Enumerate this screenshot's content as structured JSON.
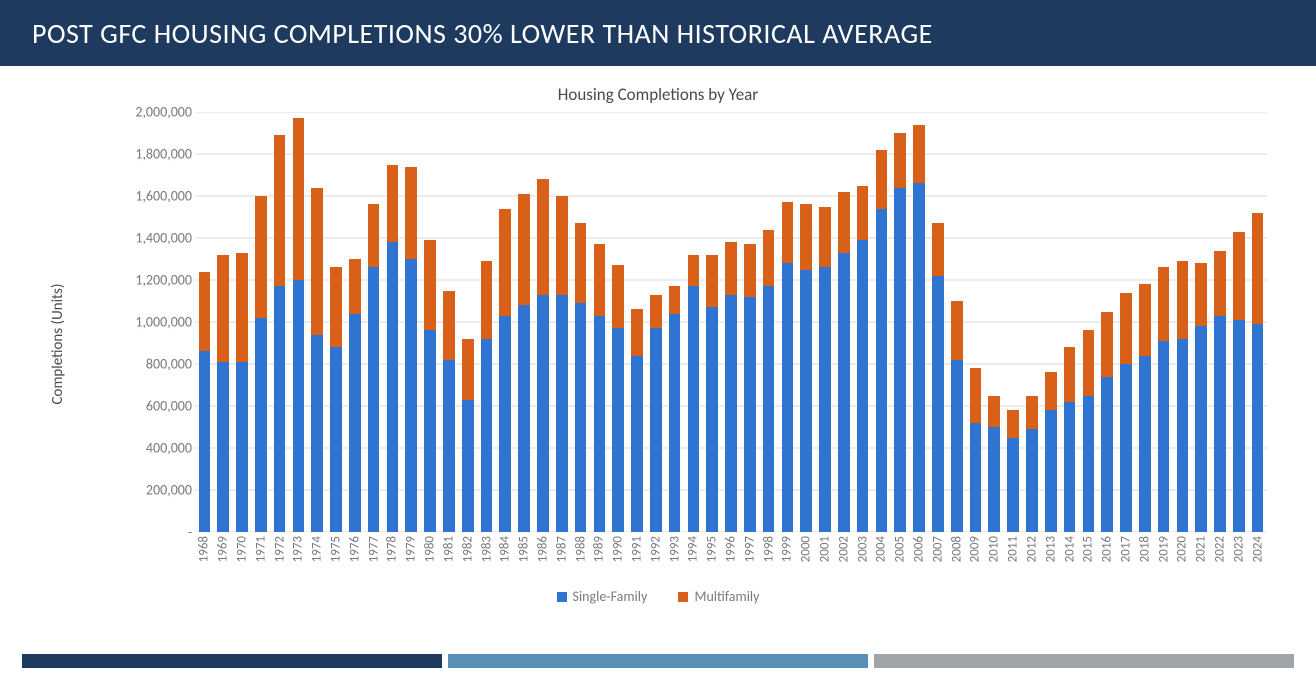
{
  "title": {
    "text": "POST GFC HOUSING COMPLETIONS 30% LOWER THAN HISTORICAL AVERAGE",
    "bg_color": "#1f3a5f",
    "text_color": "#ffffff",
    "fontsize_pt": 28
  },
  "chart": {
    "type": "stacked-bar",
    "subtitle": "Housing Completions by Year",
    "subtitle_fontsize_pt": 17,
    "subtitle_color": "#7a7a7a",
    "y_axis_label": "Completions (Units)",
    "y_axis_label_fontsize_pt": 15,
    "y_axis_label_color": "#7a7a7a",
    "background_color": "#ffffff",
    "grid_color": "#d9d9d9",
    "ylim_min": 0,
    "ylim_max": 2000000,
    "ytick_step": 200000,
    "ytick_labels": [
      "-",
      "200,000",
      "400,000",
      "600,000",
      "800,000",
      "1,000,000",
      "1,200,000",
      "1,400,000",
      "1,600,000",
      "1,800,000",
      "2,000,000"
    ],
    "tick_fontsize_pt": 14,
    "tick_color": "#7a7a7a",
    "series": [
      {
        "key": "single_family",
        "label": "Single-Family",
        "color": "#2f74d0"
      },
      {
        "key": "multifamily",
        "label": "Multifamily",
        "color": "#d86018"
      }
    ],
    "legend_fontsize_pt": 14,
    "bar_width_ratio": 0.62,
    "x_labels": [
      "1968",
      "1969",
      "1970",
      "1971",
      "1972",
      "1973",
      "1974",
      "1975",
      "1976",
      "1977",
      "1978",
      "1979",
      "1980",
      "1981",
      "1982",
      "1983",
      "1984",
      "1985",
      "1986",
      "1987",
      "1988",
      "1989",
      "1990",
      "1991",
      "1992",
      "1993",
      "1994",
      "1995",
      "1996",
      "1997",
      "1998",
      "1999",
      "2000",
      "2001",
      "2002",
      "2003",
      "2004",
      "2005",
      "2006",
      "2007",
      "2008",
      "2009",
      "2010",
      "2011",
      "2012",
      "2013",
      "2014",
      "2015",
      "2016",
      "2017",
      "2018",
      "2019",
      "2020",
      "2021",
      "2022",
      "2023",
      "2024"
    ],
    "x_label_fontsize_pt": 13,
    "data": [
      {
        "single_family": 860000,
        "multifamily": 380000
      },
      {
        "single_family": 810000,
        "multifamily": 510000
      },
      {
        "single_family": 810000,
        "multifamily": 520000
      },
      {
        "single_family": 1020000,
        "multifamily": 580000
      },
      {
        "single_family": 1170000,
        "multifamily": 720000
      },
      {
        "single_family": 1200000,
        "multifamily": 770000
      },
      {
        "single_family": 940000,
        "multifamily": 700000
      },
      {
        "single_family": 880000,
        "multifamily": 380000
      },
      {
        "single_family": 1040000,
        "multifamily": 260000
      },
      {
        "single_family": 1260000,
        "multifamily": 300000
      },
      {
        "single_family": 1380000,
        "multifamily": 370000
      },
      {
        "single_family": 1300000,
        "multifamily": 440000
      },
      {
        "single_family": 960000,
        "multifamily": 430000
      },
      {
        "single_family": 820000,
        "multifamily": 330000
      },
      {
        "single_family": 630000,
        "multifamily": 290000
      },
      {
        "single_family": 920000,
        "multifamily": 370000
      },
      {
        "single_family": 1030000,
        "multifamily": 510000
      },
      {
        "single_family": 1080000,
        "multifamily": 530000
      },
      {
        "single_family": 1130000,
        "multifamily": 550000
      },
      {
        "single_family": 1130000,
        "multifamily": 470000
      },
      {
        "single_family": 1090000,
        "multifamily": 380000
      },
      {
        "single_family": 1030000,
        "multifamily": 340000
      },
      {
        "single_family": 970000,
        "multifamily": 300000
      },
      {
        "single_family": 840000,
        "multifamily": 220000
      },
      {
        "single_family": 970000,
        "multifamily": 160000
      },
      {
        "single_family": 1040000,
        "multifamily": 130000
      },
      {
        "single_family": 1170000,
        "multifamily": 150000
      },
      {
        "single_family": 1070000,
        "multifamily": 250000
      },
      {
        "single_family": 1130000,
        "multifamily": 250000
      },
      {
        "single_family": 1120000,
        "multifamily": 250000
      },
      {
        "single_family": 1170000,
        "multifamily": 270000
      },
      {
        "single_family": 1280000,
        "multifamily": 290000
      },
      {
        "single_family": 1250000,
        "multifamily": 310000
      },
      {
        "single_family": 1260000,
        "multifamily": 290000
      },
      {
        "single_family": 1330000,
        "multifamily": 290000
      },
      {
        "single_family": 1390000,
        "multifamily": 260000
      },
      {
        "single_family": 1540000,
        "multifamily": 280000
      },
      {
        "single_family": 1640000,
        "multifamily": 260000
      },
      {
        "single_family": 1660000,
        "multifamily": 280000
      },
      {
        "single_family": 1220000,
        "multifamily": 250000
      },
      {
        "single_family": 820000,
        "multifamily": 280000
      },
      {
        "single_family": 520000,
        "multifamily": 260000
      },
      {
        "single_family": 500000,
        "multifamily": 150000
      },
      {
        "single_family": 450000,
        "multifamily": 130000
      },
      {
        "single_family": 490000,
        "multifamily": 160000
      },
      {
        "single_family": 580000,
        "multifamily": 180000
      },
      {
        "single_family": 620000,
        "multifamily": 260000
      },
      {
        "single_family": 650000,
        "multifamily": 310000
      },
      {
        "single_family": 740000,
        "multifamily": 310000
      },
      {
        "single_family": 800000,
        "multifamily": 340000
      },
      {
        "single_family": 840000,
        "multifamily": 340000
      },
      {
        "single_family": 910000,
        "multifamily": 350000
      },
      {
        "single_family": 920000,
        "multifamily": 370000
      },
      {
        "single_family": 980000,
        "multifamily": 300000
      },
      {
        "single_family": 1030000,
        "multifamily": 310000
      },
      {
        "single_family": 1010000,
        "multifamily": 420000
      },
      {
        "single_family": 990000,
        "multifamily": 530000
      }
    ]
  },
  "footer_bars": {
    "colors": [
      "#1f3a5f",
      "#5a8fb8",
      "#9fa4a8"
    ]
  }
}
